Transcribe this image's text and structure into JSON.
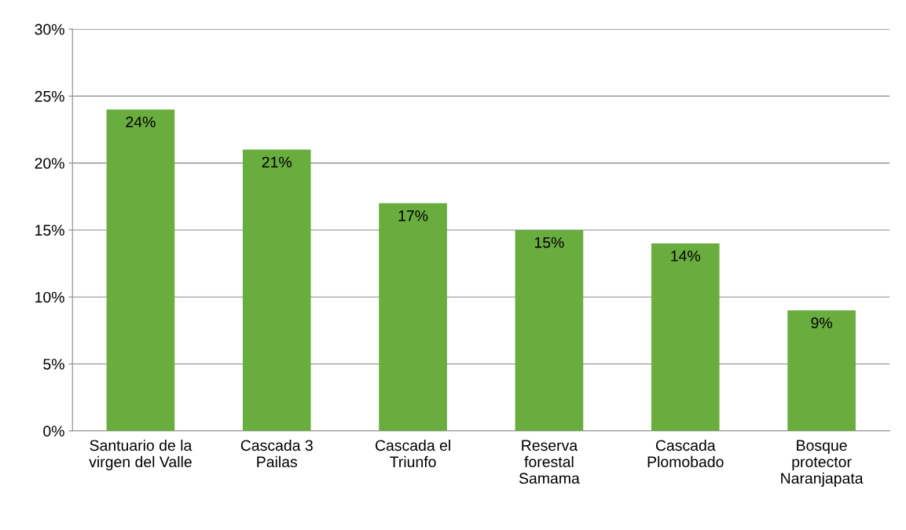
{
  "chart_data": {
    "type": "bar",
    "categories": [
      "Santuario de la\nvirgen del Valle",
      "Cascada 3\nPailas",
      "Cascada el\nTriunfo",
      "Reserva\nforestal\nSamama",
      "Cascada\nPlomobado",
      "Bosque\nprotector\nNaranjapata"
    ],
    "values": [
      24,
      21,
      17,
      15,
      14,
      9
    ],
    "value_labels": [
      "24%",
      "21%",
      "17%",
      "15%",
      "14%",
      "9%"
    ],
    "color": "#6aad3f",
    "ylim": [
      0,
      30
    ],
    "yticks": [
      {
        "value": 0,
        "label": "0%"
      },
      {
        "value": 5,
        "label": "5%"
      },
      {
        "value": 10,
        "label": "10%"
      },
      {
        "value": 15,
        "label": "15%"
      },
      {
        "value": 20,
        "label": "20%"
      },
      {
        "value": 25,
        "label": "25%"
      },
      {
        "value": 30,
        "label": "30%"
      }
    ],
    "grid": "y"
  }
}
